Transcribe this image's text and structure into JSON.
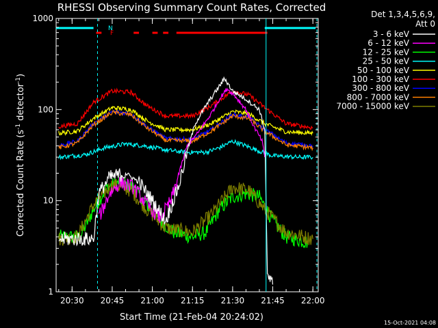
{
  "chart_data": {
    "type": "line",
    "title": "RHESSI Observing Summary Count Rates, Corrected",
    "xlabel": "Start Time (21-Feb-04 20:24:02)",
    "ylabel": "Corrected Count Rate (s",
    "ylabel_sup": "-1",
    "ylabel_tail": " detector",
    "ylabel_end": ")",
    "footer": "15-Oct-2021 04:08",
    "y_scale": "log",
    "ylim": [
      1,
      1000
    ],
    "xlim": [
      "20:24:02",
      "22:02:00"
    ],
    "x_ticks": [
      "20:30",
      "20:45",
      "21:00",
      "21:15",
      "21:30",
      "21:45",
      "22:00"
    ],
    "y_ticks": [
      "1",
      "10",
      "100",
      "1000"
    ],
    "legend_header": [
      "Det 1,3,4,5,6,9,",
      "Att 0"
    ],
    "legend_placement": "right",
    "bar_labels": {
      "n": "N",
      "f": "F"
    },
    "series": [
      {
        "name": "3 - 6 keV",
        "color": "#ffffff",
        "points": [
          [
            "20:25",
            3.8
          ],
          [
            "20:38",
            3.8
          ],
          [
            "20:40",
            12
          ],
          [
            "20:44",
            18
          ],
          [
            "20:50",
            20
          ],
          [
            "20:55",
            16
          ],
          [
            "21:00",
            10
          ],
          [
            "21:05",
            6
          ],
          [
            "21:10",
            15
          ],
          [
            "21:13",
            35
          ],
          [
            "21:16",
            70
          ],
          [
            "21:20",
            110
          ],
          [
            "21:25",
            180
          ],
          [
            "21:27",
            220
          ],
          [
            "21:30",
            160
          ],
          [
            "21:35",
            130
          ],
          [
            "21:40",
            100
          ],
          [
            "21:42",
            60
          ],
          [
            "21:43",
            1.5
          ],
          [
            "21:45",
            1.2
          ]
        ]
      },
      {
        "name": "6 - 12 keV",
        "color": "#ff00ff",
        "points": [
          [
            "20:40",
            6.5
          ],
          [
            "20:44",
            12
          ],
          [
            "20:48",
            16
          ],
          [
            "20:53",
            14
          ],
          [
            "20:58",
            9
          ],
          [
            "21:03",
            6.5
          ],
          [
            "21:07",
            10
          ],
          [
            "21:10",
            20
          ],
          [
            "21:13",
            40
          ],
          [
            "21:17",
            55
          ],
          [
            "21:22",
            90
          ],
          [
            "21:25",
            130
          ],
          [
            "21:28",
            170
          ],
          [
            "21:31",
            140
          ],
          [
            "21:35",
            100
          ],
          [
            "21:38",
            65
          ],
          [
            "21:41",
            45
          ],
          [
            "21:42",
            30
          ]
        ]
      },
      {
        "name": "12 - 25 keV",
        "color": "#00ff00",
        "points": [
          [
            "20:25",
            4
          ],
          [
            "20:33",
            4
          ],
          [
            "20:38",
            8
          ],
          [
            "20:43",
            14
          ],
          [
            "20:48",
            16
          ],
          [
            "20:53",
            14
          ],
          [
            "20:58",
            9
          ],
          [
            "21:03",
            6
          ],
          [
            "21:08",
            4.5
          ],
          [
            "21:15",
            4
          ],
          [
            "21:20",
            4.5
          ],
          [
            "21:25",
            8
          ],
          [
            "21:30",
            11
          ],
          [
            "21:35",
            12
          ],
          [
            "21:40",
            11
          ],
          [
            "21:45",
            6
          ],
          [
            "21:50",
            4
          ],
          [
            "21:58",
            3.5
          ]
        ]
      },
      {
        "name": "25 - 50 keV",
        "color": "#00ffff",
        "points": [
          [
            "20:25",
            30
          ],
          [
            "20:35",
            32
          ],
          [
            "20:42",
            38
          ],
          [
            "20:50",
            42
          ],
          [
            "20:57",
            40
          ],
          [
            "21:05",
            36
          ],
          [
            "21:12",
            34
          ],
          [
            "21:20",
            34
          ],
          [
            "21:25",
            38
          ],
          [
            "21:30",
            45
          ],
          [
            "21:35",
            40
          ],
          [
            "21:40",
            35
          ],
          [
            "21:45",
            31
          ],
          [
            "21:55",
            30
          ],
          [
            "22:00",
            30
          ]
        ]
      },
      {
        "name": "50 - 100 keV",
        "color": "#ffff00",
        "points": [
          [
            "20:25",
            55
          ],
          [
            "20:32",
            58
          ],
          [
            "20:38",
            80
          ],
          [
            "20:45",
            105
          ],
          [
            "20:52",
            100
          ],
          [
            "20:58",
            75
          ],
          [
            "21:05",
            60
          ],
          [
            "21:15",
            60
          ],
          [
            "21:22",
            70
          ],
          [
            "21:30",
            95
          ],
          [
            "21:36",
            90
          ],
          [
            "21:42",
            70
          ],
          [
            "21:50",
            57
          ],
          [
            "22:00",
            55
          ]
        ]
      },
      {
        "name": "100 - 300 keV",
        "color": "#ff0000",
        "points": [
          [
            "20:25",
            65
          ],
          [
            "20:32",
            70
          ],
          [
            "20:38",
            120
          ],
          [
            "20:45",
            160
          ],
          [
            "20:52",
            155
          ],
          [
            "20:58",
            110
          ],
          [
            "21:05",
            85
          ],
          [
            "21:15",
            85
          ],
          [
            "21:22",
            110
          ],
          [
            "21:30",
            160
          ],
          [
            "21:36",
            145
          ],
          [
            "21:42",
            105
          ],
          [
            "21:50",
            70
          ],
          [
            "22:00",
            63
          ]
        ]
      },
      {
        "name": "300 - 800 keV",
        "color": "#0000ff",
        "points": [
          [
            "20:25",
            40
          ],
          [
            "20:32",
            45
          ],
          [
            "20:38",
            70
          ],
          [
            "20:45",
            95
          ],
          [
            "20:52",
            90
          ],
          [
            "20:58",
            65
          ],
          [
            "21:05",
            48
          ],
          [
            "21:15",
            47
          ],
          [
            "21:22",
            60
          ],
          [
            "21:30",
            88
          ],
          [
            "21:36",
            82
          ],
          [
            "21:42",
            60
          ],
          [
            "21:50",
            43
          ],
          [
            "22:00",
            40
          ]
        ]
      },
      {
        "name": "800 - 7000 keV",
        "color": "#ff8000",
        "points": [
          [
            "20:25",
            38
          ],
          [
            "20:32",
            43
          ],
          [
            "20:38",
            68
          ],
          [
            "20:45",
            93
          ],
          [
            "20:52",
            88
          ],
          [
            "20:58",
            63
          ],
          [
            "21:05",
            46
          ],
          [
            "21:15",
            45
          ],
          [
            "21:22",
            58
          ],
          [
            "21:30",
            85
          ],
          [
            "21:36",
            80
          ],
          [
            "21:42",
            58
          ],
          [
            "21:50",
            41
          ],
          [
            "22:00",
            38
          ]
        ]
      },
      {
        "name": "7000 - 15000 keV",
        "color": "#808000",
        "points": [
          [
            "20:25",
            3.8
          ],
          [
            "20:32",
            4
          ],
          [
            "20:38",
            9
          ],
          [
            "20:45",
            15
          ],
          [
            "20:52",
            13
          ],
          [
            "20:58",
            8
          ],
          [
            "21:05",
            5
          ],
          [
            "21:15",
            4.5
          ],
          [
            "21:22",
            7
          ],
          [
            "21:30",
            14
          ],
          [
            "21:36",
            13
          ],
          [
            "21:42",
            8
          ],
          [
            "21:50",
            4.5
          ],
          [
            "22:00",
            3.8
          ]
        ]
      }
    ],
    "night_bars": [
      [
        "20:24",
        "20:38"
      ],
      [
        "21:42",
        "22:01"
      ]
    ],
    "night_bar_color": "#00ffff",
    "flare_bars": [
      [
        "20:39",
        "20:41"
      ],
      [
        "20:53",
        "20:55"
      ],
      [
        "21:00",
        "21:02"
      ],
      [
        "21:04",
        "21:06"
      ],
      [
        "21:09",
        "21:43"
      ]
    ],
    "flare_bar_color": "#ff0000",
    "vlines_dashed": [
      "20:39:30",
      "22:01:30"
    ],
    "vlines_solid": [
      "21:42:30"
    ]
  }
}
